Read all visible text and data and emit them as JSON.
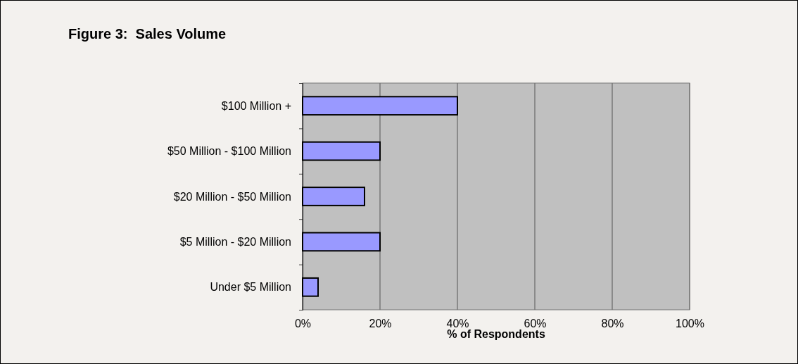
{
  "chart_data": {
    "type": "bar",
    "orientation": "horizontal",
    "title": "Figure 3:  Sales Volume",
    "xlabel": "% of Respondents",
    "categories": [
      "$100 Million +",
      "$50 Million - $100 Million",
      "$20 Million - $50 Million",
      "$5 Million - $20 Million",
      "Under $5 Million"
    ],
    "values": [
      40,
      20,
      16,
      20,
      4
    ],
    "color": "#9999ff",
    "xlim": [
      0,
      100
    ],
    "xticks": [
      {
        "value": 0,
        "label": "0%"
      },
      {
        "value": 20,
        "label": "20%"
      },
      {
        "value": 40,
        "label": "40%"
      },
      {
        "value": 60,
        "label": "60%"
      },
      {
        "value": 80,
        "label": "80%"
      },
      {
        "value": 100,
        "label": "100%"
      }
    ],
    "grid": "x"
  }
}
